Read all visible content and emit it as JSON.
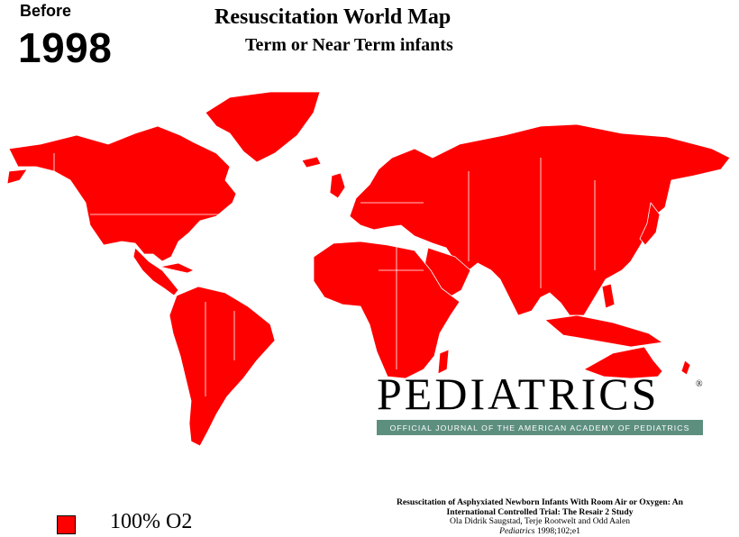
{
  "era": {
    "label": "Before",
    "year": "1998"
  },
  "title": "Resuscitation World Map",
  "subtitle": "Term or Near Term infants",
  "map": {
    "fill_color": "#ff0000",
    "border_color": "#ffffff",
    "shading_category": "100% O2"
  },
  "brand": {
    "name": "PEDIATRICS",
    "registered_mark": "®",
    "tagline": "OFFICIAL JOURNAL OF THE AMERICAN ACADEMY OF PEDIATRICS",
    "tagline_color": "#5d8f7f"
  },
  "legend": {
    "items": [
      {
        "label": "100% O2",
        "color": "#ff0000"
      }
    ]
  },
  "citation": {
    "title_line1": "Resuscitation of Asphyxiated Newborn Infants With Room Air or Oxygen: An",
    "title_line2": "International Controlled Trial: The Resair 2 Study",
    "authors": "Ola Didrik Saugstad, Terje Rootwelt and Odd Aalen",
    "journal": "Pediatrics",
    "volume": "1998;102;e1"
  }
}
